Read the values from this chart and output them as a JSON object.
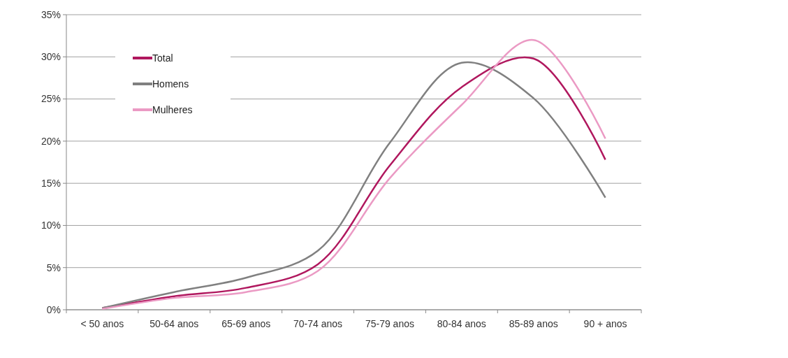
{
  "chart_data": {
    "type": "line",
    "categories": [
      "< 50 anos",
      "50-64 anos",
      "65-69 anos",
      "70-74 anos",
      "75-79 anos",
      "80-84 anos",
      "85-89 anos",
      "90 + anos"
    ],
    "series": [
      {
        "name": "Total",
        "color": "#b0175e",
        "values": [
          0.2,
          1.6,
          2.6,
          5.4,
          17.1,
          26.4,
          29.8,
          17.8
        ]
      },
      {
        "name": "Homens",
        "color": "#808080",
        "values": [
          0.2,
          2.1,
          3.8,
          7.0,
          19.8,
          29.3,
          25.1,
          13.3
        ]
      },
      {
        "name": "Mulheres",
        "color": "#eb9ac4",
        "values": [
          0.1,
          1.4,
          2.1,
          4.6,
          15.6,
          24.3,
          32.0,
          20.3
        ]
      }
    ],
    "ylim": [
      0,
      35
    ],
    "yticks": [
      {
        "value": 0,
        "label": "0%"
      },
      {
        "value": 5,
        "label": "5%"
      },
      {
        "value": 10,
        "label": "10%"
      },
      {
        "value": 15,
        "label": "15%"
      },
      {
        "value": 20,
        "label": "20%"
      },
      {
        "value": 25,
        "label": "25%"
      },
      {
        "value": 30,
        "label": "30%"
      },
      {
        "value": 35,
        "label": "35%"
      }
    ],
    "grid": "y",
    "legend": "top left",
    "marker": "none",
    "line_style": "solid"
  }
}
